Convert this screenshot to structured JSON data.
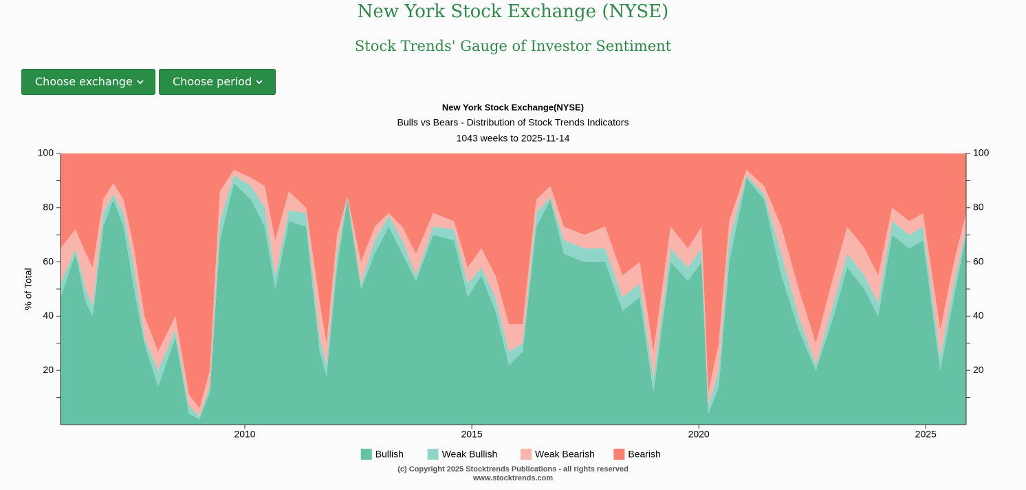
{
  "header": {
    "title": "New York Stock Exchange (NYSE)",
    "subtitle": "Stock Trends' Gauge of Investor Sentiment"
  },
  "controls": {
    "exchange_button": "Choose exchange",
    "period_button": "Choose period"
  },
  "chart_data": {
    "type": "stacked_area",
    "title": "New York Stock Exchange(NYSE)",
    "subtitle": "Bulls vs Bears - Distribution of Stock Trends Indicators",
    "note": "1043 weeks to 2025-11-14",
    "y_label": "% of Total",
    "x": [
      2005.94,
      2006.27,
      2006.5,
      2006.65,
      2006.88,
      2007.1,
      2007.33,
      2007.56,
      2007.79,
      2008.09,
      2008.47,
      2008.77,
      2009.0,
      2009.23,
      2009.45,
      2009.76,
      2010.14,
      2010.44,
      2010.67,
      2010.97,
      2011.35,
      2011.65,
      2011.8,
      2012.03,
      2012.26,
      2012.56,
      2012.86,
      2013.17,
      2013.47,
      2013.77,
      2014.15,
      2014.61,
      2014.91,
      2015.21,
      2015.52,
      2015.82,
      2016.12,
      2016.42,
      2016.73,
      2017.03,
      2017.48,
      2017.94,
      2018.32,
      2018.7,
      2019.0,
      2019.38,
      2019.76,
      2020.06,
      2020.21,
      2020.44,
      2020.67,
      2021.05,
      2021.44,
      2021.82,
      2022.2,
      2022.58,
      2022.97,
      2023.27,
      2023.65,
      2023.95,
      2024.26,
      2024.64,
      2024.94,
      2025.32,
      2025.62,
      2025.89
    ],
    "series": [
      {
        "name": "Bullish",
        "color": "#66c2a5",
        "values": [
          47,
          63,
          45,
          40,
          73,
          83,
          73,
          50,
          30,
          14,
          32,
          4,
          2,
          12,
          68,
          89,
          83,
          73,
          50,
          75,
          73,
          27,
          18,
          58,
          83,
          50,
          63,
          73,
          63,
          53,
          70,
          68,
          47,
          55,
          42,
          22,
          27,
          73,
          83,
          63,
          60,
          60,
          42,
          47,
          12,
          60,
          53,
          60,
          4,
          14,
          60,
          91,
          83,
          55,
          35,
          20,
          40,
          58,
          50,
          40,
          70,
          65,
          68,
          20,
          47,
          70
        ]
      },
      {
        "name": "Weak Bullish",
        "color": "#8fd5c8",
        "values": [
          5,
          2,
          5,
          4,
          5,
          2,
          5,
          8,
          2,
          6,
          3,
          3,
          1,
          2,
          7,
          3,
          5,
          7,
          5,
          4,
          5,
          5,
          4,
          5,
          1,
          2,
          5,
          4,
          5,
          2,
          3,
          4,
          5,
          3,
          5,
          5,
          3,
          5,
          1,
          5,
          5,
          5,
          5,
          5,
          5,
          5,
          5,
          5,
          3,
          6,
          8,
          1,
          2,
          8,
          5,
          2,
          5,
          5,
          5,
          5,
          5,
          5,
          5,
          5,
          5,
          2
        ]
      },
      {
        "name": "Weak Bearish",
        "color": "#f9b4ab",
        "values": [
          13,
          7,
          13,
          14,
          5,
          4,
          5,
          7,
          8,
          7,
          5,
          4,
          3,
          6,
          11,
          2,
          3,
          8,
          13,
          7,
          2,
          13,
          8,
          7,
          0,
          8,
          5,
          1,
          5,
          8,
          5,
          3,
          6,
          7,
          8,
          10,
          7,
          5,
          4,
          5,
          5,
          8,
          8,
          8,
          10,
          8,
          7,
          8,
          5,
          10,
          7,
          2,
          3,
          10,
          10,
          8,
          10,
          10,
          10,
          10,
          5,
          5,
          5,
          10,
          8,
          6
        ]
      },
      {
        "name": "Bearish",
        "color": "#fa8072",
        "values": [
          35,
          28,
          37,
          42,
          17,
          11,
          17,
          35,
          60,
          73,
          60,
          89,
          94,
          80,
          14,
          6,
          9,
          12,
          32,
          14,
          20,
          55,
          70,
          30,
          16,
          40,
          27,
          22,
          27,
          37,
          22,
          25,
          42,
          35,
          45,
          63,
          63,
          17,
          12,
          27,
          30,
          27,
          45,
          40,
          73,
          27,
          35,
          27,
          88,
          70,
          25,
          6,
          12,
          27,
          50,
          70,
          45,
          27,
          35,
          45,
          20,
          25,
          22,
          65,
          40,
          22
        ]
      }
    ],
    "xlim": [
      2005.94,
      2025.89
    ],
    "xticks": [
      2010,
      2015,
      2020,
      2025
    ],
    "ylim": [
      0,
      100
    ],
    "yticks": [
      20,
      40,
      60,
      80,
      100
    ],
    "y_minor_ticks": [
      10,
      30,
      50,
      70,
      90
    ],
    "right_axis": true,
    "legend": "bottom",
    "copyright": "(c) Copyright 2025 Stocktrends Publications - all rights reserved",
    "website": "www.stocktrends.com"
  }
}
